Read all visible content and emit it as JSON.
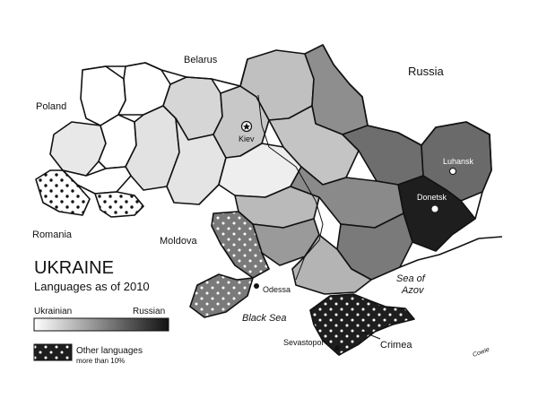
{
  "title": "UKRAINE",
  "subtitle": "Languages as of 2010",
  "legend": {
    "scale_left": "Ukrainian",
    "scale_right": "Russian",
    "other_label": "Other languages",
    "other_note": "more than 10%"
  },
  "neighbors": {
    "belarus": "Belarus",
    "russia": "Russia",
    "poland": "Poland",
    "romania": "Romania",
    "moldova": "Moldova"
  },
  "seas": {
    "black_sea": "Black Sea",
    "sea_of_azov_line1": "Sea of",
    "sea_of_azov_line2": "Azov"
  },
  "cities": {
    "kiev": "Kiev",
    "luhansk": "Luhansk",
    "donetsk": "Donetsk",
    "odessa": "Odessa",
    "sevastopol": "Sevastopol"
  },
  "crimea_label": "Crimea",
  "signature": "Cowie",
  "colors": {
    "ukrainian_fill": "#ffffff",
    "russian_fill": "#1a1a1a",
    "other_languages_pattern": "#1a1a1a dotted white"
  }
}
